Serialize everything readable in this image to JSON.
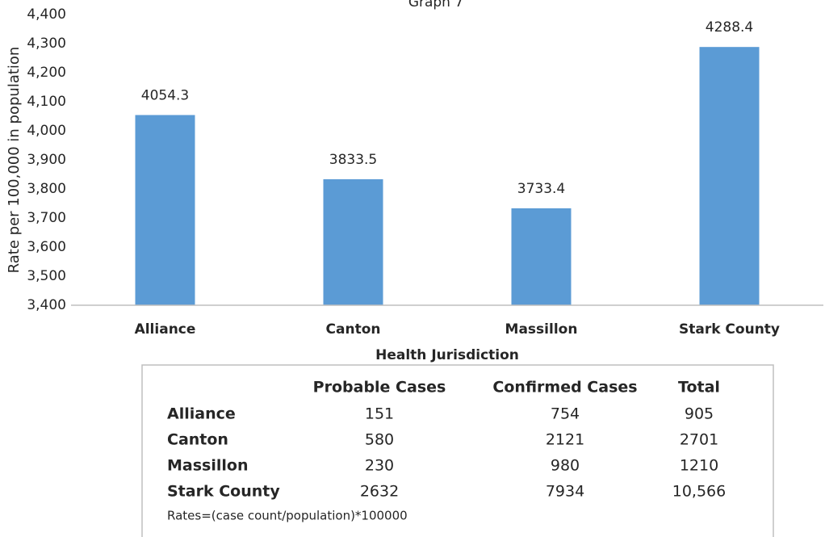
{
  "chart_data": {
    "type": "bar",
    "title": "Graph 7",
    "x_label": "Health Jurisdiction",
    "y_label": "Rate per 100,000 in population",
    "categories": [
      "Alliance",
      "Canton",
      "Massillon",
      "Stark County"
    ],
    "values": [
      4054.3,
      3833.5,
      3733.4,
      4288.4
    ],
    "color": "#5b9bd5",
    "ylim": [
      3400,
      4400
    ],
    "yticks": [
      {
        "value": 3400,
        "label": "3,400"
      },
      {
        "value": 3500,
        "label": "3,500"
      },
      {
        "value": 3600,
        "label": "3,600"
      },
      {
        "value": 3700,
        "label": "3,700"
      },
      {
        "value": 3800,
        "label": "3,800"
      },
      {
        "value": 3900,
        "label": "3,900"
      },
      {
        "value": 4000,
        "label": "4,000"
      },
      {
        "value": 4100,
        "label": "4,100"
      },
      {
        "value": 4200,
        "label": "4,200"
      },
      {
        "value": 4300,
        "label": "4,300"
      },
      {
        "value": 4400,
        "label": "4,400"
      }
    ],
    "grid": false
  },
  "table": {
    "columns": [
      "Probable Cases",
      "Confirmed Cases",
      "Total"
    ],
    "rows": [
      {
        "label": "Alliance",
        "cells": [
          151,
          754,
          905
        ]
      },
      {
        "label": "Canton",
        "cells": [
          580,
          2121,
          2701
        ]
      },
      {
        "label": "Massillon",
        "cells": [
          230,
          980,
          1210
        ]
      },
      {
        "label": "Stark County",
        "cells": [
          2632,
          7934,
          "10,566"
        ]
      }
    ],
    "note": "Rates=(case count/population)*100000"
  }
}
